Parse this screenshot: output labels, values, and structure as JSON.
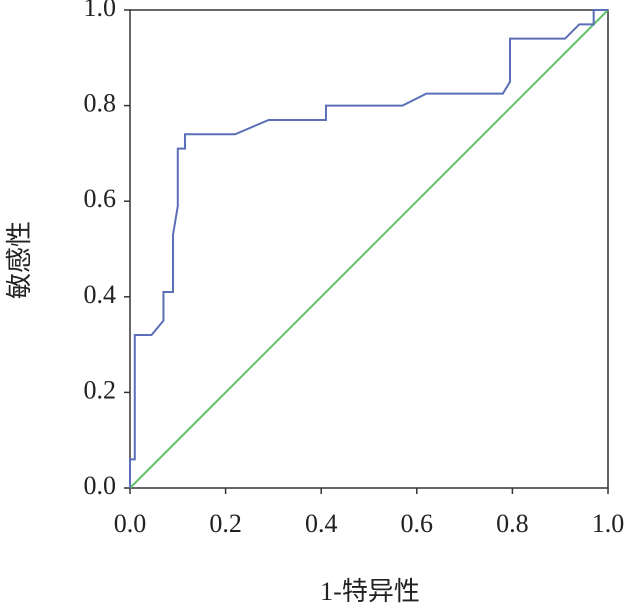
{
  "chart_data": {
    "type": "line",
    "x_label": "1-特异性",
    "y_label": "敏感性",
    "xlim": [
      0,
      1
    ],
    "ylim": [
      0,
      1
    ],
    "xticks": [
      {
        "value": 0,
        "label": "0.0"
      },
      {
        "value": 0.2,
        "label": "0.2"
      },
      {
        "value": 0.4,
        "label": "0.4"
      },
      {
        "value": 0.6,
        "label": "0.6"
      },
      {
        "value": 0.8,
        "label": "0.8"
      },
      {
        "value": 1,
        "label": "1.0"
      }
    ],
    "yticks": [
      {
        "value": 0,
        "label": "0.0"
      },
      {
        "value": 0.2,
        "label": "0.2"
      },
      {
        "value": 0.4,
        "label": "0.4"
      },
      {
        "value": 0.6,
        "label": "0.6"
      },
      {
        "value": 0.8,
        "label": "0.8"
      },
      {
        "value": 1,
        "label": "1.0"
      }
    ],
    "series": [
      {
        "color": "#5a6fb8",
        "x": [
          0,
          0,
          0.01,
          0.01,
          0.045,
          0.07,
          0.07,
          0.09,
          0.09,
          0.1,
          0.1,
          0.115,
          0.115,
          0.22,
          0.29,
          0.41,
          0.41,
          0.57,
          0.62,
          0.78,
          0.795,
          0.795,
          0.91,
          0.94,
          0.97,
          0.97,
          1
        ],
        "values": [
          0,
          0.06,
          0.06,
          0.32,
          0.32,
          0.35,
          0.41,
          0.41,
          0.53,
          0.59,
          0.71,
          0.71,
          0.74,
          0.74,
          0.77,
          0.77,
          0.8,
          0.8,
          0.825,
          0.825,
          0.85,
          0.94,
          0.94,
          0.97,
          0.97,
          1,
          1
        ]
      },
      {
        "color": "#5ec26a",
        "x": [
          0,
          1
        ],
        "values": [
          0,
          1
        ]
      }
    ]
  }
}
